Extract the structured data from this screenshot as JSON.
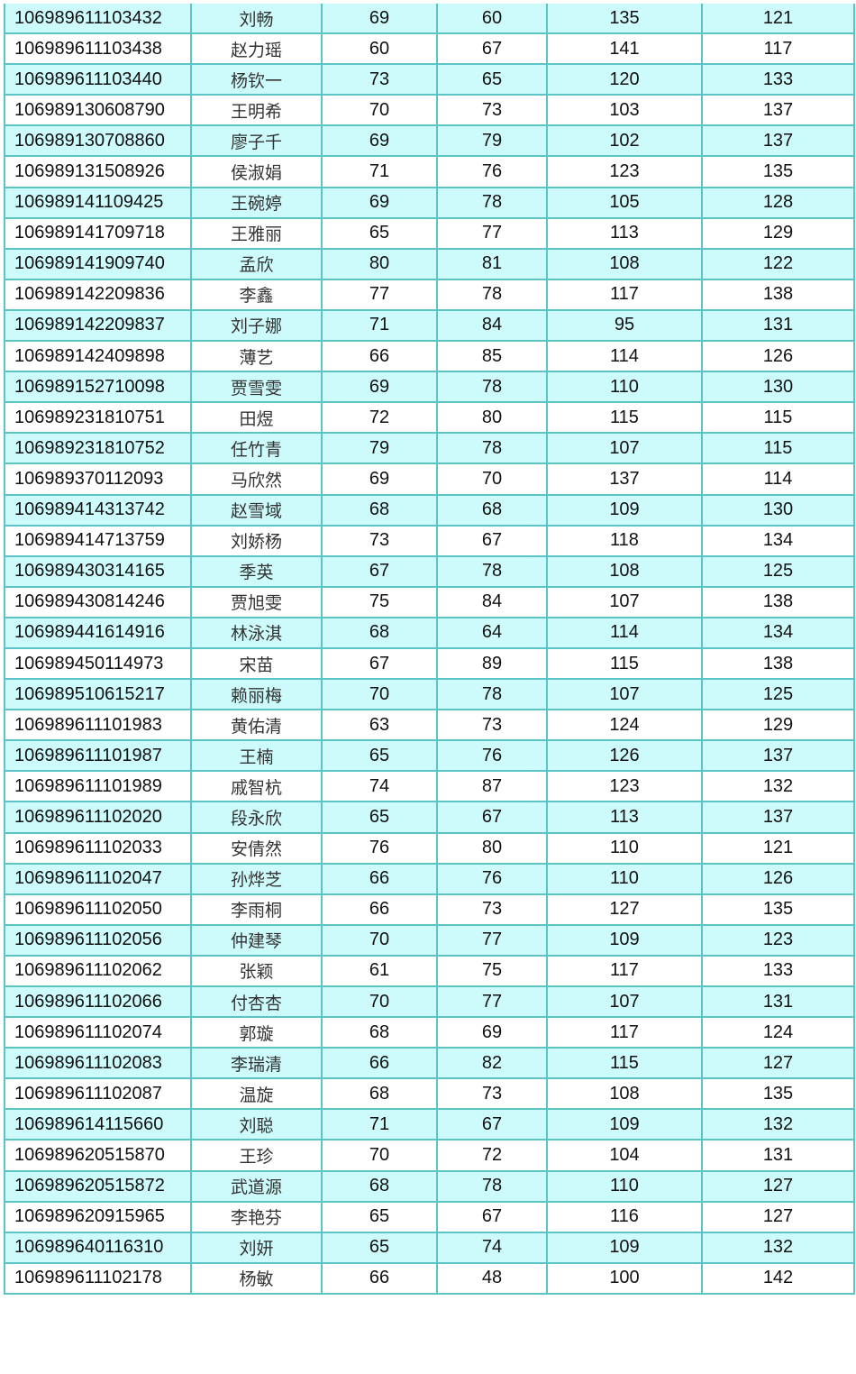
{
  "table": {
    "row_color": "#cdfbfb",
    "border_color": "#5cc4c6",
    "rows": [
      [
        "106989611103432",
        "刘畅",
        "69",
        "60",
        "135",
        "121"
      ],
      [
        "106989611103438",
        "赵力瑶",
        "60",
        "67",
        "141",
        "117"
      ],
      [
        "106989611103440",
        "杨钦一",
        "73",
        "65",
        "120",
        "133"
      ],
      [
        "106989130608790",
        "王明希",
        "70",
        "73",
        "103",
        "137"
      ],
      [
        "106989130708860",
        "廖子千",
        "69",
        "79",
        "102",
        "137"
      ],
      [
        "106989131508926",
        "侯淑娟",
        "71",
        "76",
        "123",
        "135"
      ],
      [
        "106989141109425",
        "王碗婷",
        "69",
        "78",
        "105",
        "128"
      ],
      [
        "106989141709718",
        "王雅丽",
        "65",
        "77",
        "113",
        "129"
      ],
      [
        "106989141909740",
        "孟欣",
        "80",
        "81",
        "108",
        "122"
      ],
      [
        "106989142209836",
        "李鑫",
        "77",
        "78",
        "117",
        "138"
      ],
      [
        "106989142209837",
        "刘子娜",
        "71",
        "84",
        "95",
        "131"
      ],
      [
        "106989142409898",
        "薄艺",
        "66",
        "85",
        "114",
        "126"
      ],
      [
        "106989152710098",
        "贾雪雯",
        "69",
        "78",
        "110",
        "130"
      ],
      [
        "106989231810751",
        "田煜",
        "72",
        "80",
        "115",
        "115"
      ],
      [
        "106989231810752",
        "任竹青",
        "79",
        "78",
        "107",
        "115"
      ],
      [
        "106989370112093",
        "马欣然",
        "69",
        "70",
        "137",
        "114"
      ],
      [
        "106989414313742",
        "赵雪域",
        "68",
        "68",
        "109",
        "130"
      ],
      [
        "106989414713759",
        "刘娇杨",
        "73",
        "67",
        "118",
        "134"
      ],
      [
        "106989430314165",
        "季英",
        "67",
        "78",
        "108",
        "125"
      ],
      [
        "106989430814246",
        "贾旭雯",
        "75",
        "84",
        "107",
        "138"
      ],
      [
        "106989441614916",
        "林泳淇",
        "68",
        "64",
        "114",
        "134"
      ],
      [
        "106989450114973",
        "宋苗",
        "67",
        "89",
        "115",
        "138"
      ],
      [
        "106989510615217",
        "赖丽梅",
        "70",
        "78",
        "107",
        "125"
      ],
      [
        "106989611101983",
        "黄佑清",
        "63",
        "73",
        "124",
        "129"
      ],
      [
        "106989611101987",
        "王楠",
        "65",
        "76",
        "126",
        "137"
      ],
      [
        "106989611101989",
        "戚智杭",
        "74",
        "87",
        "123",
        "132"
      ],
      [
        "106989611102020",
        "段永欣",
        "65",
        "67",
        "113",
        "137"
      ],
      [
        "106989611102033",
        "安倩然",
        "76",
        "80",
        "110",
        "121"
      ],
      [
        "106989611102047",
        "孙烨芝",
        "66",
        "76",
        "110",
        "126"
      ],
      [
        "106989611102050",
        "李雨桐",
        "66",
        "73",
        "127",
        "135"
      ],
      [
        "106989611102056",
        "仲建琴",
        "70",
        "77",
        "109",
        "123"
      ],
      [
        "106989611102062",
        "张颖",
        "61",
        "75",
        "117",
        "133"
      ],
      [
        "106989611102066",
        "付杏杏",
        "70",
        "77",
        "107",
        "131"
      ],
      [
        "106989611102074",
        "郭璇",
        "68",
        "69",
        "117",
        "124"
      ],
      [
        "106989611102083",
        "李瑞清",
        "66",
        "82",
        "115",
        "127"
      ],
      [
        "106989611102087",
        "温旋",
        "68",
        "73",
        "108",
        "135"
      ],
      [
        "106989614115660",
        "刘聪",
        "71",
        "67",
        "109",
        "132"
      ],
      [
        "106989620515870",
        "王珍",
        "70",
        "72",
        "104",
        "131"
      ],
      [
        "106989620515872",
        "武道源",
        "68",
        "78",
        "110",
        "127"
      ],
      [
        "106989620915965",
        "李艳芬",
        "65",
        "67",
        "116",
        "127"
      ],
      [
        "106989640116310",
        "刘妍",
        "65",
        "74",
        "109",
        "132"
      ],
      [
        "106989611102178",
        "杨敏",
        "66",
        "48",
        "100",
        "142"
      ]
    ]
  }
}
